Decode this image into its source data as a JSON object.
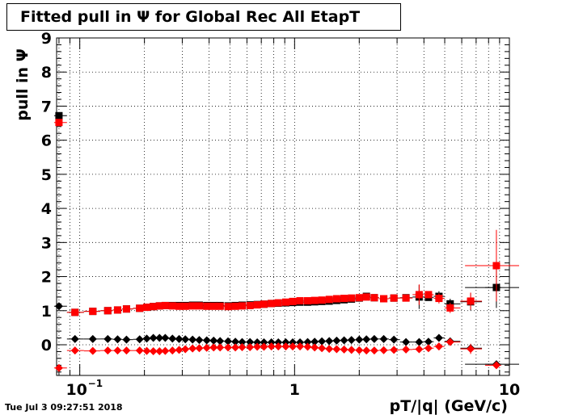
{
  "title": "Fitted pull in  Ψ  for Global Rec All EtapT",
  "timestamp": "Tue Jul  3 09:27:51 2018",
  "colors": {
    "series_black": "#000000",
    "series_red": "#ff0000",
    "grid": "#000000",
    "frame": "#000000"
  },
  "chart_data": {
    "type": "scatter",
    "title": "Fitted pull in  Ψ  for Global Rec All EtapT",
    "xlabel": "pT/|q| (GeV/c)",
    "ylabel": "pull in  Ψ",
    "xscale": "log",
    "xlim": [
      0.078,
      10
    ],
    "ylim": [
      -0.9,
      9
    ],
    "grid": true,
    "x_ticks": [
      {
        "value": 0.1,
        "label": "10",
        "exp": "−1"
      },
      {
        "value": 1,
        "label": "1"
      },
      {
        "value": 10,
        "label": "10"
      }
    ],
    "y_ticks": [
      0,
      1,
      2,
      3,
      4,
      5,
      6,
      7,
      8,
      9
    ],
    "series": [
      {
        "color": "#000000",
        "marker": "square",
        "points": [
          [
            0.08,
            6.72
          ],
          [
            0.095,
            0.95
          ],
          [
            0.115,
            0.98
          ],
          [
            0.135,
            1.0
          ],
          [
            0.15,
            1.02
          ],
          [
            0.165,
            1.05
          ],
          [
            0.19,
            1.07
          ],
          [
            0.205,
            1.1
          ],
          [
            0.22,
            1.12
          ],
          [
            0.235,
            1.14
          ],
          [
            0.25,
            1.15
          ],
          [
            0.27,
            1.15
          ],
          [
            0.29,
            1.15
          ],
          [
            0.31,
            1.15
          ],
          [
            0.335,
            1.16
          ],
          [
            0.36,
            1.16
          ],
          [
            0.39,
            1.15
          ],
          [
            0.42,
            1.15
          ],
          [
            0.45,
            1.15
          ],
          [
            0.49,
            1.14
          ],
          [
            0.53,
            1.15
          ],
          [
            0.57,
            1.16
          ],
          [
            0.62,
            1.17
          ],
          [
            0.67,
            1.18
          ],
          [
            0.72,
            1.19
          ],
          [
            0.78,
            1.21
          ],
          [
            0.84,
            1.22
          ],
          [
            0.91,
            1.23
          ],
          [
            0.98,
            1.24
          ],
          [
            1.06,
            1.25
          ],
          [
            1.15,
            1.25
          ],
          [
            1.24,
            1.26
          ],
          [
            1.34,
            1.27
          ],
          [
            1.45,
            1.28
          ],
          [
            1.57,
            1.3
          ],
          [
            1.7,
            1.32
          ],
          [
            1.84,
            1.34
          ],
          [
            2.0,
            1.37
          ],
          [
            2.16,
            1.42
          ],
          [
            2.35,
            1.38
          ],
          [
            2.6,
            1.35
          ],
          [
            2.9,
            1.37
          ],
          [
            3.3,
            1.38
          ],
          [
            3.8,
            1.4
          ],
          [
            4.2,
            1.39
          ],
          [
            4.7,
            1.42
          ],
          [
            5.3,
            1.2
          ],
          [
            6.6,
            1.26
          ],
          [
            8.7,
            1.68
          ]
        ],
        "yerr": [
          [
            3.8,
            0.35
          ],
          [
            4.7,
            0.15
          ],
          [
            5.3,
            0.15
          ],
          [
            6.6,
            0.25
          ],
          [
            8.7,
            0.6
          ]
        ],
        "xerr": [
          [
            8.7,
            0.8
          ]
        ]
      },
      {
        "color": "#ff0000",
        "marker": "square",
        "points": [
          [
            0.08,
            6.52
          ],
          [
            0.095,
            0.95
          ],
          [
            0.115,
            0.98
          ],
          [
            0.135,
            1.0
          ],
          [
            0.15,
            1.02
          ],
          [
            0.165,
            1.05
          ],
          [
            0.19,
            1.07
          ],
          [
            0.205,
            1.1
          ],
          [
            0.22,
            1.12
          ],
          [
            0.235,
            1.14
          ],
          [
            0.25,
            1.15
          ],
          [
            0.27,
            1.14
          ],
          [
            0.29,
            1.13
          ],
          [
            0.31,
            1.13
          ],
          [
            0.335,
            1.14
          ],
          [
            0.36,
            1.14
          ],
          [
            0.39,
            1.13
          ],
          [
            0.42,
            1.13
          ],
          [
            0.45,
            1.13
          ],
          [
            0.49,
            1.12
          ],
          [
            0.53,
            1.13
          ],
          [
            0.57,
            1.14
          ],
          [
            0.62,
            1.15
          ],
          [
            0.67,
            1.17
          ],
          [
            0.72,
            1.19
          ],
          [
            0.78,
            1.21
          ],
          [
            0.84,
            1.23
          ],
          [
            0.91,
            1.25
          ],
          [
            0.98,
            1.27
          ],
          [
            1.06,
            1.29
          ],
          [
            1.15,
            1.29
          ],
          [
            1.24,
            1.3
          ],
          [
            1.34,
            1.31
          ],
          [
            1.45,
            1.33
          ],
          [
            1.57,
            1.35
          ],
          [
            1.7,
            1.36
          ],
          [
            1.84,
            1.37
          ],
          [
            2.0,
            1.38
          ],
          [
            2.16,
            1.4
          ],
          [
            2.35,
            1.38
          ],
          [
            2.6,
            1.35
          ],
          [
            2.9,
            1.37
          ],
          [
            3.3,
            1.37
          ],
          [
            3.8,
            1.47
          ],
          [
            4.2,
            1.47
          ],
          [
            4.7,
            1.36
          ],
          [
            5.3,
            1.08
          ],
          [
            6.6,
            1.28
          ],
          [
            8.7,
            2.32
          ]
        ],
        "yerr": [
          [
            3.8,
            0.3
          ],
          [
            4.7,
            0.15
          ],
          [
            5.3,
            0.15
          ],
          [
            6.6,
            0.25
          ],
          [
            8.7,
            1.05
          ]
        ],
        "xerr": [
          [
            8.7,
            0.8
          ]
        ]
      },
      {
        "color": "#000000",
        "marker": "diamond",
        "points": [
          [
            0.08,
            1.13
          ],
          [
            0.095,
            0.17
          ],
          [
            0.115,
            0.17
          ],
          [
            0.135,
            0.17
          ],
          [
            0.15,
            0.16
          ],
          [
            0.165,
            0.15
          ],
          [
            0.19,
            0.16
          ],
          [
            0.205,
            0.18
          ],
          [
            0.22,
            0.2
          ],
          [
            0.235,
            0.2
          ],
          [
            0.25,
            0.2
          ],
          [
            0.27,
            0.18
          ],
          [
            0.29,
            0.17
          ],
          [
            0.31,
            0.16
          ],
          [
            0.335,
            0.15
          ],
          [
            0.36,
            0.14
          ],
          [
            0.39,
            0.13
          ],
          [
            0.42,
            0.12
          ],
          [
            0.45,
            0.11
          ],
          [
            0.49,
            0.1
          ],
          [
            0.53,
            0.09
          ],
          [
            0.57,
            0.08
          ],
          [
            0.62,
            0.08
          ],
          [
            0.67,
            0.07
          ],
          [
            0.72,
            0.07
          ],
          [
            0.78,
            0.07
          ],
          [
            0.84,
            0.07
          ],
          [
            0.91,
            0.07
          ],
          [
            0.98,
            0.07
          ],
          [
            1.06,
            0.07
          ],
          [
            1.15,
            0.08
          ],
          [
            1.24,
            0.09
          ],
          [
            1.34,
            0.1
          ],
          [
            1.45,
            0.11
          ],
          [
            1.57,
            0.12
          ],
          [
            1.7,
            0.13
          ],
          [
            1.84,
            0.14
          ],
          [
            2.0,
            0.15
          ],
          [
            2.16,
            0.16
          ],
          [
            2.35,
            0.17
          ],
          [
            2.6,
            0.17
          ],
          [
            2.9,
            0.15
          ],
          [
            3.3,
            0.08
          ],
          [
            3.8,
            0.08
          ],
          [
            4.2,
            0.09
          ],
          [
            4.7,
            0.2
          ],
          [
            5.3,
            0.1
          ],
          [
            6.6,
            -0.1
          ],
          [
            8.7,
            -0.57
          ]
        ],
        "yerr": [],
        "xerr": [
          [
            8.7,
            0.8
          ]
        ]
      },
      {
        "color": "#ff0000",
        "marker": "diamond",
        "points": [
          [
            0.08,
            -0.68
          ],
          [
            0.095,
            -0.17
          ],
          [
            0.115,
            -0.18
          ],
          [
            0.135,
            -0.17
          ],
          [
            0.15,
            -0.17
          ],
          [
            0.165,
            -0.17
          ],
          [
            0.19,
            -0.17
          ],
          [
            0.205,
            -0.18
          ],
          [
            0.22,
            -0.19
          ],
          [
            0.235,
            -0.19
          ],
          [
            0.25,
            -0.18
          ],
          [
            0.27,
            -0.17
          ],
          [
            0.29,
            -0.15
          ],
          [
            0.31,
            -0.13
          ],
          [
            0.335,
            -0.11
          ],
          [
            0.36,
            -0.1
          ],
          [
            0.39,
            -0.09
          ],
          [
            0.42,
            -0.08
          ],
          [
            0.45,
            -0.08
          ],
          [
            0.49,
            -0.08
          ],
          [
            0.53,
            -0.08
          ],
          [
            0.57,
            -0.07
          ],
          [
            0.62,
            -0.07
          ],
          [
            0.67,
            -0.06
          ],
          [
            0.72,
            -0.06
          ],
          [
            0.78,
            -0.05
          ],
          [
            0.84,
            -0.05
          ],
          [
            0.91,
            -0.05
          ],
          [
            0.98,
            -0.05
          ],
          [
            1.06,
            -0.05
          ],
          [
            1.15,
            -0.06
          ],
          [
            1.24,
            -0.08
          ],
          [
            1.34,
            -0.1
          ],
          [
            1.45,
            -0.12
          ],
          [
            1.57,
            -0.13
          ],
          [
            1.7,
            -0.14
          ],
          [
            1.84,
            -0.15
          ],
          [
            2.0,
            -0.16
          ],
          [
            2.16,
            -0.17
          ],
          [
            2.35,
            -0.17
          ],
          [
            2.6,
            -0.16
          ],
          [
            2.9,
            -0.15
          ],
          [
            3.3,
            -0.14
          ],
          [
            3.8,
            -0.13
          ],
          [
            4.2,
            -0.1
          ],
          [
            4.7,
            -0.05
          ],
          [
            5.3,
            0.08
          ],
          [
            6.6,
            -0.12
          ],
          [
            8.7,
            -0.6
          ]
        ],
        "yerr": [
          [
            6.6,
            0.15
          ]
        ],
        "xerr": []
      }
    ]
  }
}
